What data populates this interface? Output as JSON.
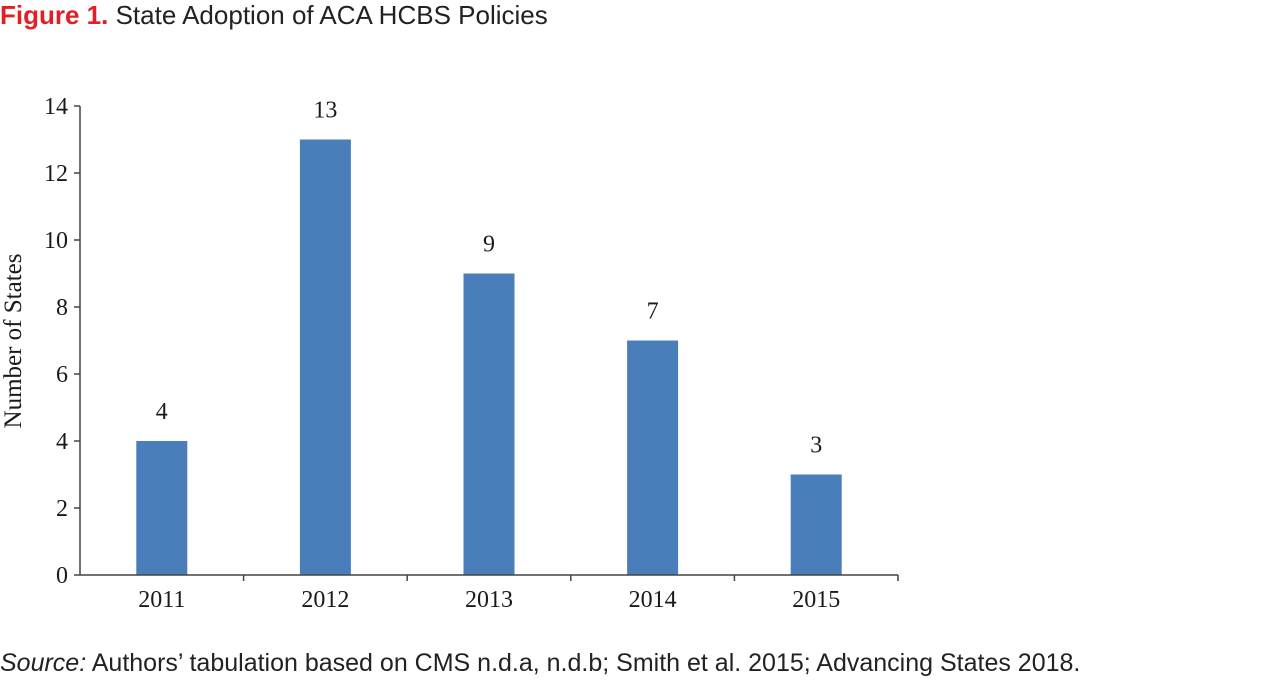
{
  "figure": {
    "label": "Figure 1.",
    "title": "State Adoption of ACA HCBS Policies"
  },
  "source": {
    "label": "Source:",
    "text": "Authors’ tabulation based on CMS n.d.a, n.d.b; Smith et al. 2015; Advancing States 2018."
  },
  "chart_data": {
    "type": "bar",
    "title": "State Adoption of ACA HCBS Policies",
    "categories": [
      "2011",
      "2012",
      "2013",
      "2014",
      "2015"
    ],
    "values": [
      4,
      13,
      9,
      7,
      3
    ],
    "data_labels": [
      "4",
      "13",
      "9",
      "7",
      "3"
    ],
    "xlabel": "",
    "ylabel": "Number of States",
    "ylim": [
      0,
      14
    ],
    "yticks": [
      0,
      2,
      4,
      6,
      8,
      10,
      12,
      14
    ],
    "grid": false,
    "legend": "none",
    "bar_color": "#4a7ebb"
  }
}
